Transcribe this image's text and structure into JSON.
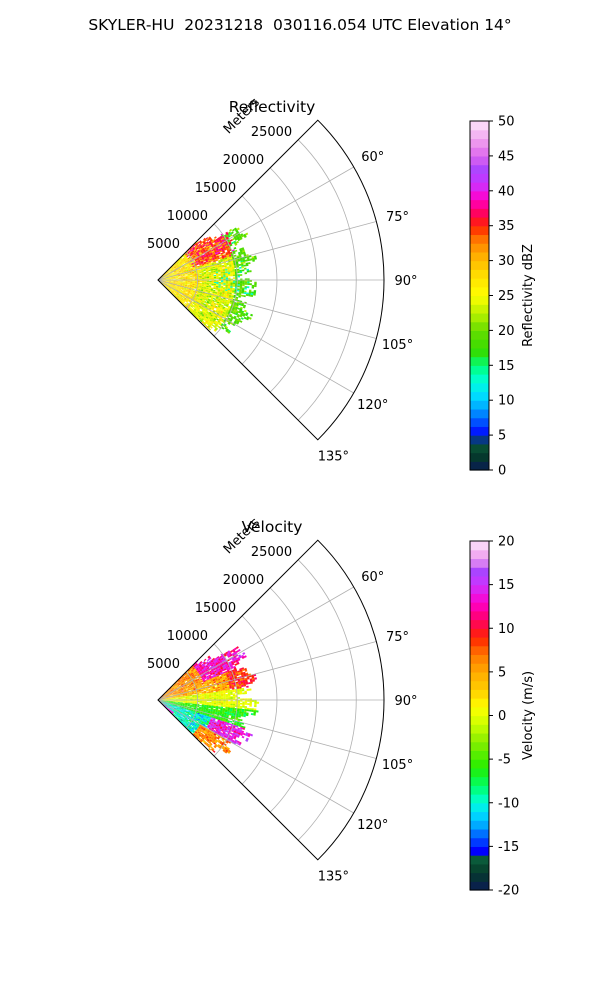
{
  "figure_title": "SKYLER-HU  20231218  030116.054 UTC Elevation 14°",
  "chart_data": [
    {
      "type": "heatmap",
      "subtype": "radar-ppi-sector",
      "title": "Reflectivity",
      "range_label": "Meters",
      "range_ticks": [
        5000,
        10000,
        15000,
        20000,
        25000
      ],
      "range_max": 28500,
      "azimuth_range": [
        45,
        135
      ],
      "azimuth_ticks": [
        "60°",
        "75°",
        "90°",
        "105°",
        "120°",
        "135°"
      ],
      "azimuth_tick_values": [
        60,
        75,
        90,
        105,
        120,
        135
      ],
      "data_extent_m": 12500,
      "grid": true,
      "colorbar": {
        "label": "Reflectivity dBZ",
        "min": 0,
        "max": 50,
        "ticks": [
          0,
          5,
          10,
          15,
          20,
          25,
          30,
          35,
          40,
          45,
          50
        ],
        "stops": [
          [
            0,
            "#0a1a55"
          ],
          [
            2,
            "#053a2a"
          ],
          [
            4,
            "#0a5a3a"
          ],
          [
            5,
            "#0000ff"
          ],
          [
            7,
            "#0055ff"
          ],
          [
            9,
            "#00aaff"
          ],
          [
            11,
            "#00e5ff"
          ],
          [
            13,
            "#00ffd0"
          ],
          [
            15,
            "#00ff7a"
          ],
          [
            17,
            "#33dd00"
          ],
          [
            20,
            "#66dd00"
          ],
          [
            22,
            "#aaee00"
          ],
          [
            25,
            "#ffff00"
          ],
          [
            28,
            "#ffdd00"
          ],
          [
            31,
            "#ffaa00"
          ],
          [
            33,
            "#ff7700"
          ],
          [
            35,
            "#ff2200"
          ],
          [
            37,
            "#ff0066"
          ],
          [
            39,
            "#ff00cc"
          ],
          [
            41,
            "#cc33ff"
          ],
          [
            43,
            "#aa44ff"
          ],
          [
            45,
            "#dd66ee"
          ],
          [
            47,
            "#ee99ee"
          ],
          [
            50,
            "#fde6fa"
          ]
        ]
      }
    },
    {
      "type": "heatmap",
      "subtype": "radar-ppi-sector",
      "title": "Velocity",
      "range_label": "Meters",
      "range_ticks": [
        5000,
        10000,
        15000,
        20000,
        25000
      ],
      "range_max": 28500,
      "azimuth_range": [
        45,
        135
      ],
      "azimuth_ticks": [
        "60°",
        "75°",
        "90°",
        "105°",
        "120°",
        "135°"
      ],
      "azimuth_tick_values": [
        60,
        75,
        90,
        105,
        120,
        135
      ],
      "data_extent_m": 12500,
      "grid": true,
      "colorbar": {
        "label": "Velocity (m/s)",
        "min": -20,
        "max": 20,
        "ticks": [
          -20,
          -15,
          -10,
          -5,
          0,
          5,
          10,
          15,
          20
        ],
        "stops": [
          [
            -20,
            "#0a1a55"
          ],
          [
            -18,
            "#053a2a"
          ],
          [
            -16.5,
            "#0a5a3a"
          ],
          [
            -15.5,
            "#0000ff"
          ],
          [
            -14,
            "#0055ff"
          ],
          [
            -12.5,
            "#00aaff"
          ],
          [
            -11,
            "#00e5ff"
          ],
          [
            -9.5,
            "#00ffc0"
          ],
          [
            -8,
            "#00ff66"
          ],
          [
            -6,
            "#22ee00"
          ],
          [
            -3,
            "#88ee00"
          ],
          [
            -1,
            "#ccff00"
          ],
          [
            1,
            "#ffff00"
          ],
          [
            3,
            "#ffcc00"
          ],
          [
            5,
            "#ffaa00"
          ],
          [
            7,
            "#ff7700"
          ],
          [
            9,
            "#ff2200"
          ],
          [
            11,
            "#ff0066"
          ],
          [
            13,
            "#ff00cc"
          ],
          [
            15,
            "#cc33ff"
          ],
          [
            16.5,
            "#aa44ff"
          ],
          [
            18,
            "#ee99ee"
          ],
          [
            20,
            "#fde6fa"
          ]
        ]
      }
    }
  ]
}
